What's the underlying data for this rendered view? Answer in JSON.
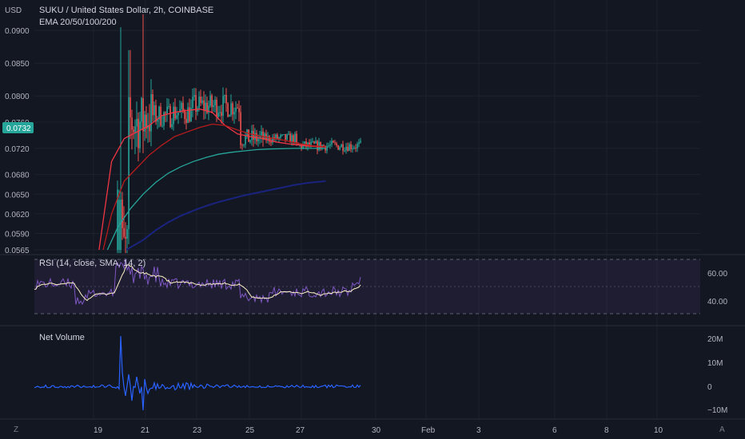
{
  "header": {
    "currency": "USD",
    "title": "SUKU / United States Dollar, 2h, COINBASE",
    "ema_legend": "EMA 20/50/100/200"
  },
  "colors": {
    "background": "#131722",
    "up": "#26a69a",
    "down": "#ef5350",
    "ema20": "#f23645",
    "ema50": "#b71c1c",
    "ema100": "#26a69a",
    "ema200": "#1a237e",
    "rsi": "#7e57c2",
    "rsi_ma": "#fff3c8",
    "volume": "#2962ff",
    "price_tag": "#26a69a"
  },
  "price_axis": {
    "ticks": [
      "0.0900",
      "0.0850",
      "0.0800",
      "0.0760",
      "0.0720",
      "0.0680",
      "0.0650",
      "0.0620",
      "0.0590",
      "0.0565"
    ],
    "current_price": "0.0732"
  },
  "rsi_panel": {
    "legend": "RSI (14, close, SMA, 14, 2)",
    "ticks": [
      "60.00",
      "40.00"
    ]
  },
  "volume_panel": {
    "legend": "Net Volume",
    "ticks": [
      "20M",
      "10M",
      "0",
      "−10M"
    ]
  },
  "time_axis": {
    "labels": [
      "19",
      "21",
      "23",
      "25",
      "27",
      "30",
      "Feb",
      "3",
      "6",
      "8",
      "10"
    ]
  },
  "corner_buttons": {
    "left": "Z",
    "right": "A"
  },
  "chart_data": {
    "type": "candlestick",
    "symbol": "SUKU / United States Dollar",
    "interval": "2h",
    "exchange": "COINBASE",
    "current_price": 0.0732,
    "price_range": [
      0.0565,
      0.091
    ],
    "ema_series": [
      {
        "name": "EMA 20",
        "points": [
          [
            "Jan 20 06:00",
            0.0565
          ],
          [
            "Jan 20 18:00",
            0.07
          ],
          [
            "Jan 21 06:00",
            0.0735
          ],
          [
            "Jan 21 18:00",
            0.0745
          ],
          [
            "Jan 22 06:00",
            0.0755
          ],
          [
            "Jan 22 18:00",
            0.077
          ],
          [
            "Jan 23 06:00",
            0.0775
          ],
          [
            "Jan 23 18:00",
            0.0778
          ],
          [
            "Jan 24 06:00",
            0.078
          ],
          [
            "Jan 24 18:00",
            0.0775
          ],
          [
            "Jan 25 06:00",
            0.0755
          ],
          [
            "Jan 25 18:00",
            0.0742
          ],
          [
            "Jan 26 06:00",
            0.0738
          ],
          [
            "Jan 26 18:00",
            0.0735
          ],
          [
            "Jan 27 06:00",
            0.073
          ],
          [
            "Jan 27 18:00",
            0.0727
          ],
          [
            "Jan 28 06:00",
            0.0725
          ],
          [
            "Jan 28 18:00",
            0.0723
          ],
          [
            "Jan 29 06:00",
            0.0722
          ]
        ]
      },
      {
        "name": "EMA 50",
        "points": [
          [
            "Jan 20 10:00",
            0.0565
          ],
          [
            "Jan 20 18:00",
            0.062
          ],
          [
            "Jan 21 06:00",
            0.067
          ],
          [
            "Jan 21 18:00",
            0.069
          ],
          [
            "Jan 22 06:00",
            0.071
          ],
          [
            "Jan 22 18:00",
            0.0725
          ],
          [
            "Jan 23 06:00",
            0.0738
          ],
          [
            "Jan 23 18:00",
            0.0745
          ],
          [
            "Jan 24 06:00",
            0.0752
          ],
          [
            "Jan 24 18:00",
            0.0757
          ],
          [
            "Jan 25 06:00",
            0.0755
          ],
          [
            "Jan 25 18:00",
            0.0748
          ],
          [
            "Jan 26 06:00",
            0.0742
          ],
          [
            "Jan 26 18:00",
            0.0738
          ],
          [
            "Jan 27 06:00",
            0.0735
          ],
          [
            "Jan 27 18:00",
            0.0731
          ],
          [
            "Jan 28 06:00",
            0.0727
          ],
          [
            "Jan 28 18:00",
            0.0724
          ],
          [
            "Jan 29 06:00",
            0.0722
          ]
        ]
      },
      {
        "name": "EMA 100",
        "points": [
          [
            "Jan 20 14:00",
            0.0565
          ],
          [
            "Jan 21 00:00",
            0.06
          ],
          [
            "Jan 21 12:00",
            0.0628
          ],
          [
            "Jan 22 00:00",
            0.065
          ],
          [
            "Jan 22 12:00",
            0.0668
          ],
          [
            "Jan 23 00:00",
            0.0682
          ],
          [
            "Jan 23 12:00",
            0.0692
          ],
          [
            "Jan 24 00:00",
            0.07
          ],
          [
            "Jan 24 12:00",
            0.0706
          ],
          [
            "Jan 25 00:00",
            0.0711
          ],
          [
            "Jan 25 12:00",
            0.0714
          ],
          [
            "Jan 26 00:00",
            0.0716
          ],
          [
            "Jan 26 12:00",
            0.0718
          ],
          [
            "Jan 27 00:00",
            0.0719
          ],
          [
            "Jan 28 00:00",
            0.072
          ],
          [
            "Jan 29 06:00",
            0.072
          ]
        ]
      },
      {
        "name": "EMA 200",
        "points": [
          [
            "Jan 21 08:00",
            0.0565
          ],
          [
            "Jan 22 00:00",
            0.058
          ],
          [
            "Jan 22 12:00",
            0.0595
          ],
          [
            "Jan 23 00:00",
            0.0607
          ],
          [
            "Jan 23 12:00",
            0.0617
          ],
          [
            "Jan 24 00:00",
            0.0625
          ],
          [
            "Jan 24 12:00",
            0.0632
          ],
          [
            "Jan 25 00:00",
            0.0638
          ],
          [
            "Jan 25 12:00",
            0.0643
          ],
          [
            "Jan 26 00:00",
            0.0648
          ],
          [
            "Jan 26 12:00",
            0.0652
          ],
          [
            "Jan 27 00:00",
            0.0656
          ],
          [
            "Jan 27 12:00",
            0.066
          ],
          [
            "Jan 28 00:00",
            0.0664
          ],
          [
            "Jan 28 12:00",
            0.0667
          ],
          [
            "Jan 29 06:00",
            0.067
          ]
        ]
      }
    ],
    "rsi": {
      "length": 14,
      "upper_band": 70,
      "lower_band": 30,
      "midline": 50,
      "last": 57
    },
    "net_volume": {
      "unit": "M",
      "peak": 21,
      "trough": -10
    }
  }
}
